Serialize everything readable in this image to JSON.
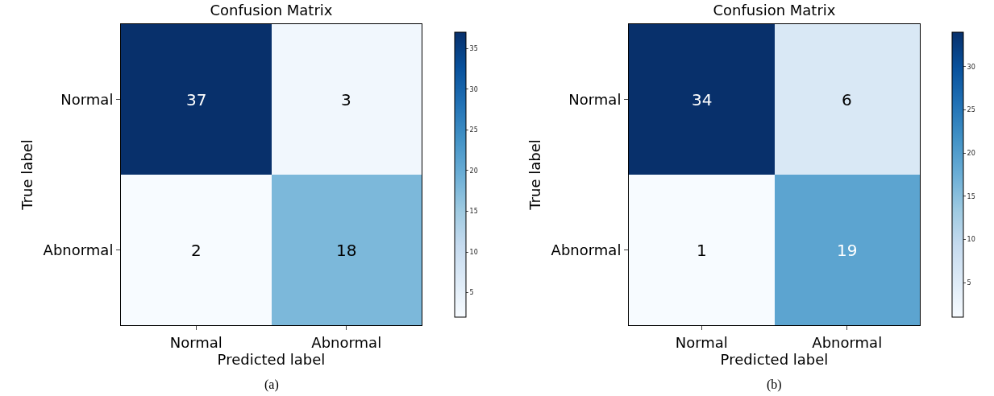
{
  "chart_data": [
    {
      "type": "heatmap",
      "title": "Confusion Matrix",
      "xlabel": "Predicted label",
      "ylabel": "True label",
      "categories": [
        "Normal",
        "Abnormal"
      ],
      "y_categories": [
        "Normal",
        "Abnormal"
      ],
      "cells": [
        [
          37,
          3
        ],
        [
          2,
          18
        ]
      ],
      "data_labels": true,
      "clim": [
        2,
        37
      ],
      "cticks": [
        5,
        10,
        15,
        20,
        25,
        30,
        35
      ],
      "annotations": [
        "(a)"
      ]
    },
    {
      "type": "heatmap",
      "title": "Confusion Matrix",
      "xlabel": "Predicted label",
      "ylabel": "True label",
      "categories": [
        "Normal",
        "Abnormal"
      ],
      "y_categories": [
        "Normal",
        "Abnormal"
      ],
      "cells": [
        [
          34,
          6
        ],
        [
          1,
          19
        ]
      ],
      "data_labels": true,
      "clim": [
        1,
        34
      ],
      "cticks": [
        5,
        10,
        15,
        20,
        25,
        30
      ],
      "annotations": [
        "(b)"
      ]
    }
  ]
}
